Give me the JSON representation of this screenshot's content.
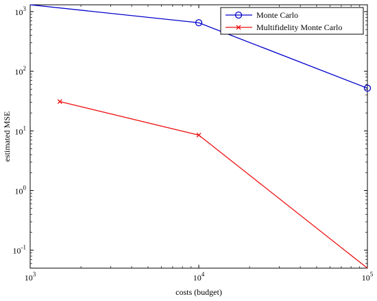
{
  "chart_data": {
    "type": "line",
    "title": "",
    "xlabel": "costs (budget)",
    "ylabel": "estimated MSE",
    "xscale": "log",
    "yscale": "log",
    "xlim": [
      1000,
      100000
    ],
    "ylim": [
      0.05,
      1300
    ],
    "grid": false,
    "legend_position": "top-right",
    "x_ticks": [
      {
        "value": 1000,
        "base": "10",
        "exp": "3"
      },
      {
        "value": 10000,
        "base": "10",
        "exp": "4"
      },
      {
        "value": 100000,
        "base": "10",
        "exp": "5"
      }
    ],
    "y_ticks": [
      {
        "value": 0.1,
        "base": "10",
        "exp": "-1"
      },
      {
        "value": 1,
        "base": "10",
        "exp": "0"
      },
      {
        "value": 10,
        "base": "10",
        "exp": "1"
      },
      {
        "value": 100,
        "base": "10",
        "exp": "2"
      },
      {
        "value": 1000,
        "base": "10",
        "exp": "3"
      }
    ],
    "series": [
      {
        "name": "Monte Carlo",
        "color": "#0000cc",
        "marker": "circle",
        "x": [
          1000,
          10000,
          100000
        ],
        "y": [
          1300,
          650,
          52
        ],
        "marked": [
          false,
          true,
          true
        ]
      },
      {
        "name": "Multifidelity Monte Carlo",
        "color": "#ee1111",
        "marker": "cross",
        "x": [
          1500,
          10000,
          100000
        ],
        "y": [
          31,
          8.5,
          0.05
        ],
        "marked": [
          true,
          true,
          false
        ]
      }
    ]
  }
}
